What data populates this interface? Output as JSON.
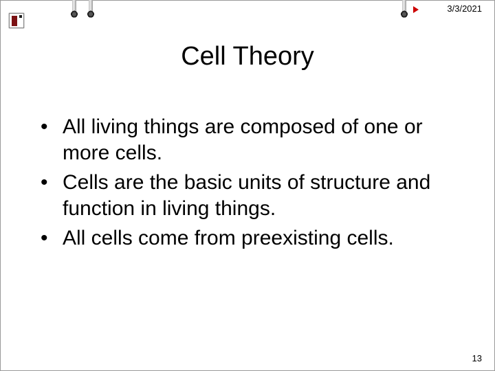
{
  "header": {
    "date": "3/3/2021"
  },
  "title": "Cell Theory",
  "bullets": [
    "All living things are composed of one or more cells.",
    "Cells are the basic units of structure and function in living things.",
    "All cells come from preexisting cells."
  ],
  "footer": {
    "page_number": "13"
  },
  "style": {
    "background_color": "#ffffff",
    "title_fontsize_pt": 38,
    "body_fontsize_pt": 30,
    "font_family": "Comic Sans MS",
    "text_color": "#000000",
    "accent_arrow_color": "#cc0000"
  }
}
